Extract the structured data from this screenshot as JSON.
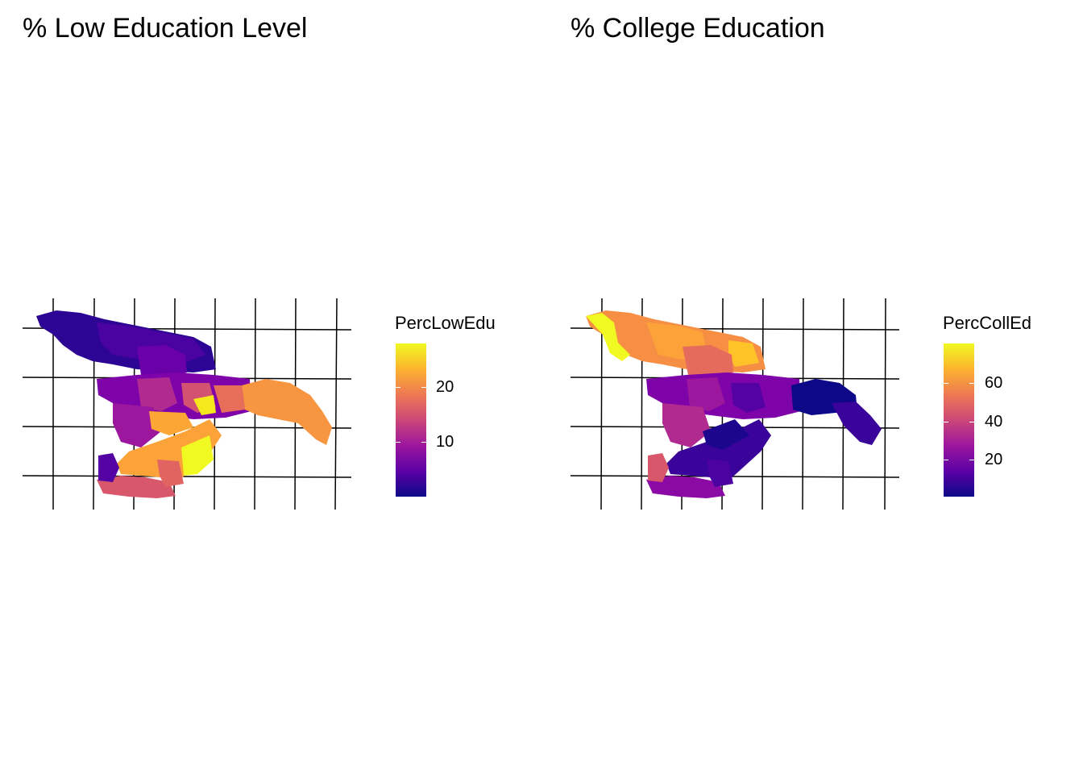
{
  "maps": [
    {
      "id": "low-edu",
      "title": "% Low Education Level",
      "legend": {
        "title": "PercLowEdu",
        "min": 1,
        "max": 28,
        "ticks": [
          {
            "value": 20,
            "label": "20"
          },
          {
            "value": 10,
            "label": "10"
          }
        ]
      },
      "palette": [
        "#0d0887",
        "#5c01a6",
        "#9c179e",
        "#cc4778",
        "#ed7953",
        "#fdb42f",
        "#f0f921"
      ]
    },
    {
      "id": "college-ed",
      "title": "% College Education",
      "legend": {
        "title": "PercCollEd",
        "min": 2,
        "max": 80,
        "ticks": [
          {
            "value": 60,
            "label": "60"
          },
          {
            "value": 40,
            "label": "40"
          },
          {
            "value": 20,
            "label": "20"
          }
        ]
      },
      "palette": [
        "#0d0887",
        "#5c01a6",
        "#9c179e",
        "#cc4778",
        "#ed7953",
        "#fdb42f",
        "#f0f921"
      ]
    }
  ]
}
